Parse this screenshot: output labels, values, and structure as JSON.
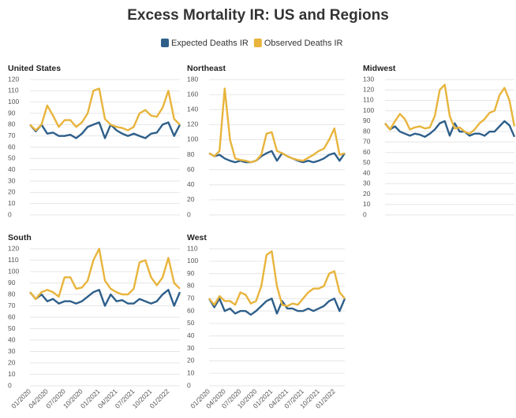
{
  "title": "Excess Mortality IR: US and Regions",
  "chart_data": [
    {
      "type": "line",
      "title": "United States",
      "ylim": [
        0,
        120
      ],
      "yticks": [
        0,
        10,
        20,
        30,
        40,
        50,
        60,
        70,
        80,
        90,
        100,
        110,
        120
      ],
      "grid": true,
      "series": [
        {
          "name": "Expected Deaths IR",
          "color": "#2e5f8a",
          "values": [
            80,
            74,
            80,
            72,
            73,
            70,
            70,
            71,
            68,
            72,
            78,
            80,
            82,
            68,
            80,
            75,
            72,
            70,
            72,
            70,
            68,
            72,
            73,
            80,
            82,
            70,
            80
          ]
        },
        {
          "name": "Observed Deaths IR",
          "color": "#e8b43c",
          "values": [
            80,
            75,
            80,
            97,
            88,
            78,
            84,
            84,
            78,
            82,
            90,
            110,
            112,
            85,
            80,
            78,
            77,
            75,
            78,
            90,
            93,
            88,
            87,
            95,
            110,
            85,
            80
          ]
        }
      ]
    },
    {
      "type": "line",
      "title": "Northeast",
      "ylim": [
        0,
        180
      ],
      "yticks": [
        0,
        20,
        40,
        60,
        80,
        100,
        120,
        140,
        160,
        180
      ],
      "grid": true,
      "series": [
        {
          "name": "Expected Deaths IR",
          "color": "#2e5f8a",
          "values": [
            82,
            78,
            80,
            75,
            72,
            70,
            72,
            70,
            70,
            72,
            78,
            82,
            85,
            72,
            82,
            78,
            75,
            72,
            70,
            72,
            70,
            72,
            75,
            80,
            82,
            72,
            82
          ]
        },
        {
          "name": "Observed Deaths IR",
          "color": "#e8b43c",
          "values": [
            82,
            78,
            85,
            168,
            100,
            75,
            73,
            72,
            70,
            72,
            80,
            108,
            110,
            85,
            82,
            78,
            75,
            73,
            72,
            76,
            80,
            85,
            88,
            100,
            115,
            80,
            82
          ]
        }
      ]
    },
    {
      "type": "line",
      "title": "Midwest",
      "ylim": [
        0,
        130
      ],
      "yticks": [
        0,
        10,
        20,
        30,
        40,
        50,
        60,
        70,
        80,
        90,
        100,
        110,
        120,
        130
      ],
      "grid": true,
      "series": [
        {
          "name": "Expected Deaths IR",
          "color": "#2e5f8a",
          "values": [
            88,
            82,
            85,
            80,
            78,
            76,
            78,
            77,
            75,
            78,
            82,
            88,
            90,
            76,
            88,
            80,
            80,
            76,
            78,
            78,
            76,
            80,
            80,
            85,
            90,
            86,
            75
          ]
        },
        {
          "name": "Observed Deaths IR",
          "color": "#e8b43c",
          "values": [
            88,
            82,
            90,
            97,
            92,
            82,
            84,
            85,
            83,
            84,
            95,
            120,
            125,
            95,
            83,
            84,
            80,
            78,
            82,
            88,
            92,
            98,
            100,
            115,
            122,
            110,
            85
          ]
        }
      ]
    },
    {
      "type": "line",
      "title": "South",
      "ylim": [
        0,
        120
      ],
      "yticks": [
        0,
        10,
        20,
        30,
        40,
        50,
        60,
        70,
        80,
        90,
        100,
        110,
        120
      ],
      "grid": true,
      "categories": [
        "01/2020",
        null,
        null,
        "04/2020",
        null,
        null,
        "07/2020",
        null,
        null,
        "10/2020",
        null,
        null,
        "01/2021",
        null,
        null,
        "04/2021",
        null,
        null,
        "07/2021",
        null,
        null,
        "10/2021",
        null,
        null,
        "01/2022",
        null,
        null
      ],
      "series": [
        {
          "name": "Expected Deaths IR",
          "color": "#2e5f8a",
          "values": [
            82,
            76,
            80,
            74,
            76,
            72,
            74,
            74,
            72,
            74,
            78,
            82,
            84,
            70,
            80,
            74,
            75,
            72,
            72,
            76,
            74,
            72,
            74,
            80,
            84,
            70,
            82
          ]
        },
        {
          "name": "Observed Deaths IR",
          "color": "#e8b43c",
          "values": [
            82,
            76,
            82,
            84,
            82,
            78,
            95,
            95,
            85,
            86,
            92,
            110,
            120,
            92,
            85,
            82,
            80,
            80,
            85,
            108,
            110,
            95,
            88,
            95,
            112,
            90,
            85
          ]
        }
      ]
    },
    {
      "type": "line",
      "title": "West",
      "ylim": [
        0,
        110
      ],
      "yticks": [
        0,
        10,
        20,
        30,
        40,
        50,
        60,
        70,
        80,
        90,
        100,
        110
      ],
      "grid": true,
      "categories": [
        "01/2020",
        null,
        null,
        "04/2020",
        null,
        null,
        "07/2020",
        null,
        null,
        "10/2020",
        null,
        null,
        "01/2021",
        null,
        null,
        "04/2021",
        null,
        null,
        "07/2021",
        null,
        null,
        "10/2021",
        null,
        null,
        "01/2022",
        null,
        null
      ],
      "series": [
        {
          "name": "Expected Deaths IR",
          "color": "#2e5f8a",
          "values": [
            70,
            63,
            70,
            60,
            62,
            58,
            60,
            60,
            57,
            60,
            64,
            68,
            70,
            58,
            68,
            62,
            62,
            60,
            60,
            62,
            60,
            62,
            64,
            68,
            70,
            60,
            70
          ]
        },
        {
          "name": "Observed Deaths IR",
          "color": "#e8b43c",
          "values": [
            70,
            65,
            72,
            68,
            68,
            65,
            75,
            73,
            66,
            68,
            80,
            105,
            108,
            80,
            65,
            64,
            66,
            65,
            70,
            75,
            78,
            78,
            80,
            90,
            92,
            75,
            70
          ]
        }
      ]
    }
  ]
}
